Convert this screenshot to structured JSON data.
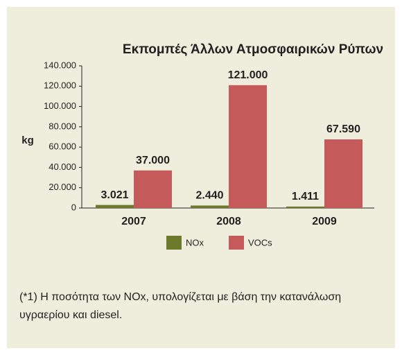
{
  "chart_data": {
    "type": "bar",
    "title": "Εκπομπές Άλλων Ατμοσφαιρικών Ρύπων",
    "y_label": "kg",
    "categories": [
      "2007",
      "2008",
      "2009"
    ],
    "series": [
      {
        "name": "NOx",
        "color": "#6b7b2b",
        "values": [
          3021,
          2440,
          1411
        ],
        "value_labels": [
          "3.021",
          "2.440",
          "1.411"
        ]
      },
      {
        "name": "VOCs",
        "color": "#c45a5a",
        "values": [
          37000,
          121000,
          67590
        ],
        "value_labels": [
          "37.000",
          "121.000",
          "67.590"
        ]
      }
    ],
    "ylim": [
      0,
      140000
    ],
    "yticks": [
      0,
      {
        "value": 20000,
        "label": "20.000"
      },
      {
        "value": 40000,
        "label": "40.000"
      },
      {
        "value": 60000,
        "label": "60.000"
      },
      {
        "value": 80000,
        "label": "80.000"
      },
      {
        "value": 100000,
        "label": "100.000"
      },
      {
        "value": 120000,
        "label": "120.000"
      },
      {
        "value": 140000,
        "label": "140.000"
      }
    ],
    "legend": "bottom",
    "footnote": "(*1) Η ποσότητα των ΝΟx, υπολογίζεται με βάση την κατανάλωση υγραερίου και diesel."
  }
}
